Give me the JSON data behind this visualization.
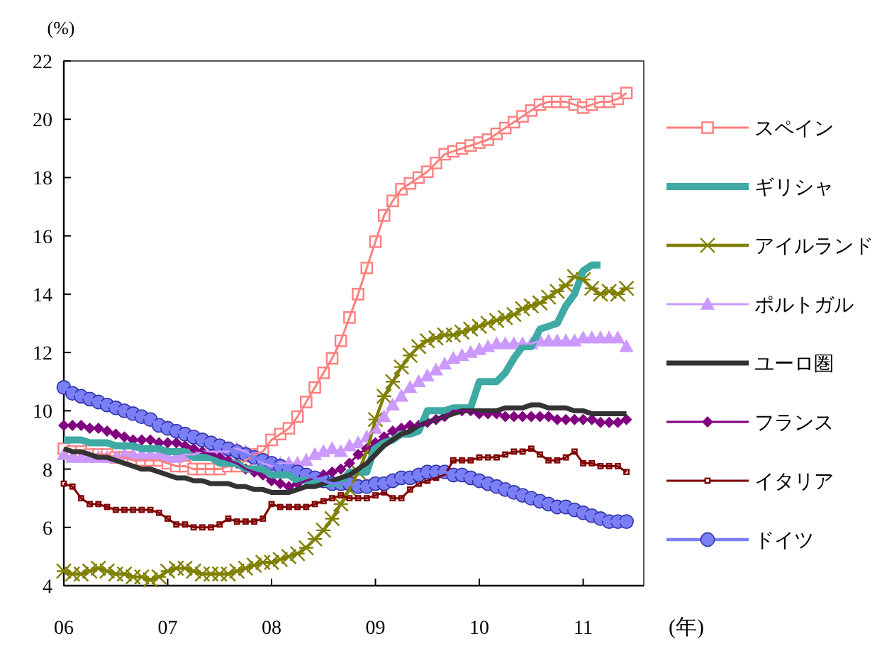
{
  "chart_data": {
    "type": "line",
    "ylabel": "(%)",
    "xlabel": "(年)",
    "legend": "right",
    "grid": false,
    "xlim": [
      "2006-01",
      "2011-08"
    ],
    "ylim": [
      4,
      22
    ],
    "yticks": [
      4,
      6,
      8,
      10,
      12,
      14,
      16,
      18,
      20,
      22
    ],
    "xticks": [
      {
        "value": "2006-01",
        "label": "06"
      },
      {
        "value": "2007-01",
        "label": "07"
      },
      {
        "value": "2008-01",
        "label": "08"
      },
      {
        "value": "2009-01",
        "label": "09"
      },
      {
        "value": "2010-01",
        "label": "10"
      },
      {
        "value": "2011-01",
        "label": "11"
      }
    ],
    "x": [
      "2006-01",
      "2006-02",
      "2006-03",
      "2006-04",
      "2006-05",
      "2006-06",
      "2006-07",
      "2006-08",
      "2006-09",
      "2006-10",
      "2006-11",
      "2006-12",
      "2007-01",
      "2007-02",
      "2007-03",
      "2007-04",
      "2007-05",
      "2007-06",
      "2007-07",
      "2007-08",
      "2007-09",
      "2007-10",
      "2007-11",
      "2007-12",
      "2008-01",
      "2008-02",
      "2008-03",
      "2008-04",
      "2008-05",
      "2008-06",
      "2008-07",
      "2008-08",
      "2008-09",
      "2008-10",
      "2008-11",
      "2008-12",
      "2009-01",
      "2009-02",
      "2009-03",
      "2009-04",
      "2009-05",
      "2009-06",
      "2009-07",
      "2009-08",
      "2009-09",
      "2009-10",
      "2009-11",
      "2009-12",
      "2010-01",
      "2010-02",
      "2010-03",
      "2010-04",
      "2010-05",
      "2010-06",
      "2010-07",
      "2010-08",
      "2010-09",
      "2010-10",
      "2010-11",
      "2010-12",
      "2011-01",
      "2011-02",
      "2011-03",
      "2011-04",
      "2011-05",
      "2011-06"
    ],
    "series": [
      {
        "name": "スペイン",
        "color": "#ff7f7f",
        "marker": "square",
        "values": [
          8.7,
          8.6,
          8.6,
          8.5,
          8.5,
          8.5,
          8.4,
          8.4,
          8.3,
          8.3,
          8.3,
          8.3,
          8.2,
          8.1,
          8.1,
          8.0,
          8.0,
          8.0,
          8.0,
          8.1,
          8.1,
          8.3,
          8.5,
          8.6,
          9.0,
          9.2,
          9.4,
          9.8,
          10.3,
          10.8,
          11.3,
          11.8,
          12.4,
          13.2,
          14.0,
          14.9,
          15.8,
          16.7,
          17.2,
          17.6,
          17.8,
          18.0,
          18.2,
          18.5,
          18.8,
          18.9,
          19.0,
          19.1,
          19.2,
          19.3,
          19.5,
          19.7,
          19.9,
          20.1,
          20.3,
          20.5,
          20.6,
          20.6,
          20.6,
          20.5,
          20.4,
          20.5,
          20.6,
          20.6,
          20.7,
          20.9
        ]
      },
      {
        "name": "ギリシャ",
        "color": "#3fa9a4",
        "marker": "none",
        "x": [
          "2006-01",
          "2006-02",
          "2006-03",
          "2006-04",
          "2006-05",
          "2006-06",
          "2006-07",
          "2006-08",
          "2006-09",
          "2006-10",
          "2006-11",
          "2006-12",
          "2007-01",
          "2007-02",
          "2007-03",
          "2007-04",
          "2007-05",
          "2007-06",
          "2007-07",
          "2007-08",
          "2007-09",
          "2007-10",
          "2007-11",
          "2007-12",
          "2008-01",
          "2008-02",
          "2008-03",
          "2008-04",
          "2008-05",
          "2008-06",
          "2008-07",
          "2008-08",
          "2008-09",
          "2008-10",
          "2008-11",
          "2008-12",
          "2009-01",
          "2009-02",
          "2009-03",
          "2009-04",
          "2009-05",
          "2009-06",
          "2009-07",
          "2009-08",
          "2009-09",
          "2009-10",
          "2009-11",
          "2009-12",
          "2010-01",
          "2010-02",
          "2010-03",
          "2010-04",
          "2010-05",
          "2010-06",
          "2010-07",
          "2010-08",
          "2010-09",
          "2010-10",
          "2010-11",
          "2010-12",
          "2011-01",
          "2011-02",
          "2011-03"
        ],
        "values": [
          9.0,
          9.0,
          9.0,
          8.9,
          8.9,
          8.9,
          8.8,
          8.8,
          8.8,
          8.7,
          8.7,
          8.7,
          8.6,
          8.6,
          8.6,
          8.4,
          8.4,
          8.4,
          8.2,
          8.2,
          8.2,
          8.0,
          8.0,
          8.0,
          7.8,
          7.8,
          7.8,
          7.6,
          7.6,
          7.6,
          7.5,
          7.5,
          7.5,
          7.9,
          7.9,
          7.9,
          8.8,
          8.9,
          9.0,
          9.2,
          9.2,
          9.3,
          10.0,
          10.0,
          10.0,
          10.1,
          10.1,
          10.1,
          11.0,
          11.0,
          11.0,
          11.3,
          11.8,
          12.2,
          12.2,
          12.8,
          12.9,
          13.0,
          13.6,
          14.0,
          14.8,
          15.0,
          15.0
        ]
      },
      {
        "name": "アイルランド",
        "color": "#808000",
        "marker": "cross",
        "values": [
          4.5,
          4.4,
          4.4,
          4.5,
          4.6,
          4.5,
          4.4,
          4.4,
          4.3,
          4.3,
          4.2,
          4.3,
          4.5,
          4.6,
          4.6,
          4.5,
          4.4,
          4.4,
          4.4,
          4.4,
          4.5,
          4.6,
          4.7,
          4.8,
          4.8,
          4.9,
          5.0,
          5.1,
          5.3,
          5.6,
          5.9,
          6.3,
          6.8,
          7.3,
          7.9,
          8.6,
          9.7,
          10.5,
          11.0,
          11.5,
          11.9,
          12.2,
          12.4,
          12.5,
          12.6,
          12.6,
          12.7,
          12.8,
          12.9,
          13.0,
          13.1,
          13.2,
          13.3,
          13.5,
          13.6,
          13.7,
          13.9,
          14.1,
          14.3,
          14.6,
          14.5,
          14.2,
          14.0,
          14.1,
          14.0,
          14.2
        ]
      },
      {
        "name": "ポルトガル",
        "color": "#cc99ff",
        "marker": "triangle",
        "values": [
          8.5,
          8.4,
          8.4,
          8.4,
          8.4,
          8.4,
          8.4,
          8.5,
          8.5,
          8.5,
          8.5,
          8.5,
          8.4,
          8.4,
          8.5,
          8.5,
          8.6,
          8.6,
          8.6,
          8.6,
          8.7,
          8.6,
          8.4,
          8.2,
          8.1,
          8.2,
          8.2,
          8.2,
          8.3,
          8.5,
          8.6,
          8.7,
          8.6,
          8.8,
          8.9,
          9.1,
          9.4,
          9.8,
          10.2,
          10.5,
          10.8,
          11.0,
          11.2,
          11.4,
          11.6,
          11.8,
          11.9,
          12.0,
          12.1,
          12.2,
          12.3,
          12.3,
          12.3,
          12.3,
          12.3,
          12.4,
          12.4,
          12.4,
          12.4,
          12.4,
          12.5,
          12.5,
          12.5,
          12.5,
          12.5,
          12.2
        ]
      },
      {
        "name": "ユーロ圏",
        "color": "#333333",
        "marker": "none",
        "values": [
          8.7,
          8.6,
          8.6,
          8.5,
          8.4,
          8.4,
          8.3,
          8.2,
          8.1,
          8.0,
          8.0,
          7.9,
          7.8,
          7.7,
          7.7,
          7.6,
          7.6,
          7.5,
          7.5,
          7.5,
          7.4,
          7.4,
          7.3,
          7.3,
          7.2,
          7.2,
          7.2,
          7.3,
          7.4,
          7.4,
          7.5,
          7.6,
          7.7,
          7.8,
          8.0,
          8.2,
          8.5,
          8.8,
          9.0,
          9.2,
          9.3,
          9.5,
          9.6,
          9.7,
          9.8,
          9.9,
          10.0,
          10.0,
          10.0,
          10.0,
          10.0,
          10.1,
          10.1,
          10.1,
          10.2,
          10.2,
          10.1,
          10.1,
          10.1,
          10.0,
          10.0,
          9.9,
          9.9,
          9.9,
          9.9,
          9.9
        ]
      },
      {
        "name": "フランス",
        "color": "#800080",
        "marker": "diamond",
        "values": [
          9.5,
          9.5,
          9.5,
          9.4,
          9.4,
          9.3,
          9.2,
          9.1,
          9.0,
          9.0,
          9.0,
          8.9,
          8.9,
          8.9,
          8.8,
          8.7,
          8.6,
          8.5,
          8.4,
          8.3,
          8.2,
          8.0,
          7.9,
          7.8,
          7.6,
          7.5,
          7.4,
          7.5,
          7.6,
          7.7,
          7.8,
          7.9,
          8.0,
          8.2,
          8.5,
          8.7,
          8.9,
          9.1,
          9.3,
          9.4,
          9.5,
          9.5,
          9.6,
          9.7,
          9.8,
          10.0,
          10.0,
          10.0,
          9.9,
          9.9,
          9.9,
          9.8,
          9.8,
          9.8,
          9.8,
          9.8,
          9.8,
          9.7,
          9.7,
          9.7,
          9.7,
          9.7,
          9.6,
          9.6,
          9.6,
          9.7
        ]
      },
      {
        "name": "イタリア",
        "color": "#800000",
        "marker": "square",
        "values": [
          7.5,
          7.4,
          7.0,
          6.8,
          6.8,
          6.7,
          6.6,
          6.6,
          6.6,
          6.6,
          6.6,
          6.5,
          6.3,
          6.1,
          6.1,
          6.0,
          6.0,
          6.0,
          6.1,
          6.3,
          6.2,
          6.2,
          6.2,
          6.3,
          6.8,
          6.7,
          6.7,
          6.7,
          6.7,
          6.8,
          6.9,
          7.0,
          7.1,
          7.0,
          7.0,
          7.0,
          7.1,
          7.2,
          7.0,
          7.0,
          7.3,
          7.5,
          7.6,
          7.7,
          7.8,
          8.3,
          8.3,
          8.3,
          8.4,
          8.4,
          8.4,
          8.5,
          8.6,
          8.6,
          8.7,
          8.5,
          8.3,
          8.3,
          8.4,
          8.6,
          8.2,
          8.2,
          8.1,
          8.1,
          8.1,
          7.9
        ]
      },
      {
        "name": "ドイツ",
        "color": "#7b7ff5",
        "marker": "circle",
        "values": [
          10.8,
          10.6,
          10.5,
          10.4,
          10.3,
          10.2,
          10.1,
          10.0,
          9.9,
          9.8,
          9.7,
          9.5,
          9.4,
          9.3,
          9.2,
          9.1,
          9.0,
          8.9,
          8.8,
          8.7,
          8.6,
          8.5,
          8.4,
          8.3,
          8.2,
          8.1,
          8.0,
          7.9,
          7.8,
          7.7,
          7.6,
          7.5,
          7.5,
          7.5,
          7.4,
          7.4,
          7.5,
          7.5,
          7.6,
          7.7,
          7.7,
          7.8,
          7.9,
          7.9,
          7.9,
          7.8,
          7.8,
          7.7,
          7.6,
          7.5,
          7.4,
          7.3,
          7.2,
          7.1,
          7.0,
          6.9,
          6.8,
          6.7,
          6.7,
          6.6,
          6.5,
          6.4,
          6.3,
          6.2,
          6.2,
          6.2
        ]
      }
    ]
  }
}
